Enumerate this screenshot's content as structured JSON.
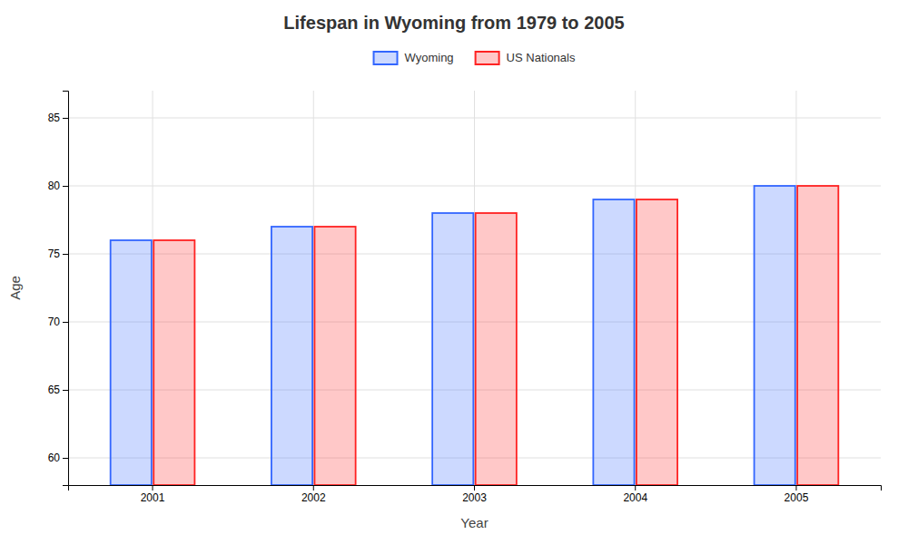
{
  "chart_data": {
    "type": "bar",
    "title": "Lifespan in Wyoming from 1979 to 2005",
    "x_label": "Year",
    "y_label": "Age",
    "categories": [
      "2001",
      "2002",
      "2003",
      "2004",
      "2005"
    ],
    "series": [
      {
        "name": "Wyoming",
        "color": "#3366ff",
        "values": [
          76,
          77,
          78,
          79,
          80
        ]
      },
      {
        "name": "US Nationals",
        "color": "#ff2222",
        "values": [
          76,
          77,
          78,
          79,
          80
        ]
      }
    ],
    "ylim": [
      58,
      87
    ],
    "yticks": [
      60,
      65,
      70,
      75,
      80,
      85
    ],
    "grid": true,
    "legend": "top"
  }
}
